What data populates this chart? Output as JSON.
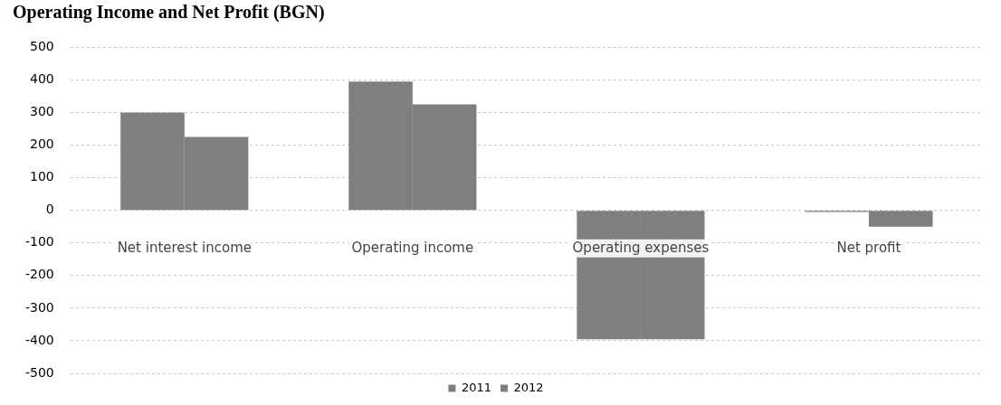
{
  "chart_data": {
    "type": "bar",
    "title": "Operating Income and Net Profit (BGN)",
    "categories": [
      "Net interest income",
      "Operating income",
      "Operating expenses",
      "Net profit"
    ],
    "series": [
      {
        "name": "2011",
        "color": "#7f7f7f",
        "values": [
          300,
          395,
          -395,
          -5
        ]
      },
      {
        "name": "2012",
        "color": "#7f7f7f",
        "values": [
          225,
          325,
          -395,
          -50
        ]
      }
    ],
    "ylim": [
      -500,
      500
    ],
    "yticks": [
      -500,
      -400,
      -300,
      -200,
      -100,
      0,
      100,
      200,
      300,
      400,
      500
    ],
    "grid": "y",
    "legend": "bottom"
  }
}
